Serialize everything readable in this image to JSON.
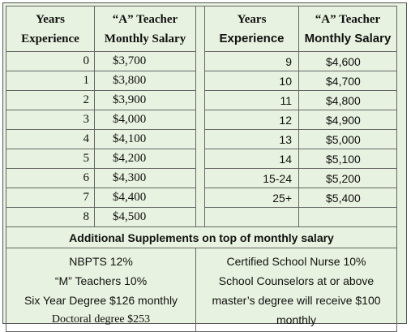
{
  "headers": {
    "left_years_1": "Years",
    "left_years_2": "Experience",
    "left_salary_1": "“A” Teacher",
    "left_salary_2": "Monthly Salary",
    "right_years_1": "Years",
    "right_years_2": "Experience",
    "right_salary_1": "“A” Teacher",
    "right_salary_2": "Monthly Salary"
  },
  "rows": [
    {
      "left_years": "0",
      "left_salary": "$3,700",
      "right_years": "9",
      "right_salary": "$4,600"
    },
    {
      "left_years": "1",
      "left_salary": "$3,800",
      "right_years": "10",
      "right_salary": "$4,700"
    },
    {
      "left_years": "2",
      "left_salary": "$3,900",
      "right_years": "11",
      "right_salary": "$4,800"
    },
    {
      "left_years": "3",
      "left_salary": "$4,000",
      "right_years": "12",
      "right_salary": "$4,900"
    },
    {
      "left_years": "4",
      "left_salary": "$4,100",
      "right_years": "13",
      "right_salary": "$5,000"
    },
    {
      "left_years": "5",
      "left_salary": "$4,200",
      "right_years": "14",
      "right_salary": "$5,100"
    },
    {
      "left_years": "6",
      "left_salary": "$4,300",
      "right_years": "15-24",
      "right_salary": "$5,200"
    },
    {
      "left_years": "7",
      "left_salary": "$4,400",
      "right_years": "25+",
      "right_salary": "$5,400"
    },
    {
      "left_years": "8",
      "left_salary": "$4,500",
      "right_years": "",
      "right_salary": ""
    }
  ],
  "supplements": {
    "title": "Additional Supplements on top of monthly salary",
    "left": [
      "NBPTS 12%",
      "“M” Teachers 10%",
      "Six Year Degree $126 monthly",
      "Doctoral degree $253"
    ],
    "right": [
      "Certified School Nurse 10%",
      "School Counselors at or above",
      "master’s degree will receive $100",
      "monthly"
    ]
  }
}
